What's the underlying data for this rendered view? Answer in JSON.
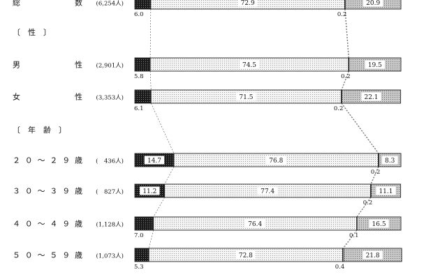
{
  "chart_data": {
    "type": "bar",
    "orientation": "horizontal",
    "stacked": "100%",
    "xlim": [
      0,
      100
    ],
    "segment_order": [
      "dark",
      "dotted",
      "blank",
      "gray"
    ],
    "rows": [
      {
        "kind": "bar",
        "label": "総　　　数",
        "count": "(6,254人)",
        "values": [
          6.0,
          72.9,
          0.2,
          20.9
        ],
        "inside_labels": [
          "",
          "72.9",
          "",
          "20.9"
        ],
        "outside_labels": [
          "6.0",
          "",
          "0.2",
          ""
        ]
      },
      {
        "kind": "section",
        "label": "〔　性　〕"
      },
      {
        "kind": "bar",
        "label": "男　　　　性",
        "count": "(2,901人)",
        "values": [
          5.8,
          74.5,
          0.2,
          19.5
        ],
        "inside_labels": [
          "",
          "74.5",
          "",
          "19.5"
        ],
        "outside_labels": [
          "5.8",
          "",
          "0.2",
          ""
        ]
      },
      {
        "kind": "bar",
        "label": "女　　　　性",
        "count": "(3,353人)",
        "values": [
          6.1,
          71.5,
          0.2,
          22.1
        ],
        "inside_labels": [
          "",
          "71.5",
          "",
          "22.1"
        ],
        "outside_labels": [
          "6.1",
          "",
          "0.2",
          ""
        ]
      },
      {
        "kind": "section",
        "label": "〔　年　齢　〕"
      },
      {
        "kind": "bar",
        "label": "２０～２９歳",
        "count": "(　436人)",
        "values": [
          14.7,
          76.8,
          0.2,
          8.3
        ],
        "inside_labels": [
          "14.7",
          "76.8",
          "",
          "8.3"
        ],
        "outside_labels": [
          "",
          "",
          "0.2",
          ""
        ]
      },
      {
        "kind": "bar",
        "label": "３０～３９歳",
        "count": "(　827人)",
        "values": [
          11.2,
          77.4,
          0.2,
          11.1
        ],
        "inside_labels": [
          "11.2",
          "77.4",
          "",
          "11.1"
        ],
        "outside_labels": [
          "",
          "",
          "0.2",
          ""
        ]
      },
      {
        "kind": "bar",
        "label": "４０～４９歳",
        "count": "(1,128人)",
        "values": [
          7.0,
          76.4,
          0.1,
          16.5
        ],
        "inside_labels": [
          "",
          "76.4",
          "",
          "16.5"
        ],
        "outside_labels": [
          "7.0",
          "",
          "0.1",
          ""
        ]
      },
      {
        "kind": "bar",
        "label": "５０～５９歳",
        "count": "(1,073人)",
        "values": [
          5.3,
          72.8,
          0.4,
          21.8
        ],
        "inside_labels": [
          "",
          "72.8",
          "",
          "21.8"
        ],
        "outside_labels": [
          "5.3",
          "",
          "0.4",
          ""
        ]
      }
    ]
  },
  "colors": {
    "dark": "#1a1a1a",
    "dotted_bg": "#f4f4f4",
    "dotted_dot": "#9a9a9a",
    "gray_bg": "#c9c9c9",
    "gray_dot": "#6a6a6a",
    "border": "#222222"
  }
}
